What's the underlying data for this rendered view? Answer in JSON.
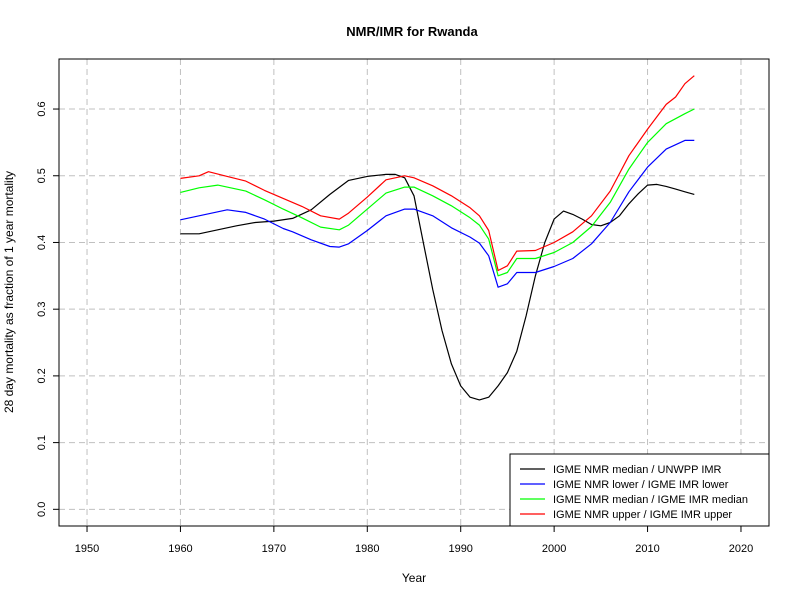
{
  "chart_data": {
    "type": "line",
    "title": "NMR/IMR for Rwanda",
    "xlabel": "Year",
    "ylabel": "28 day mortality as fraction of 1 year mortality",
    "xlim": [
      1947,
      2023
    ],
    "ylim": [
      -0.025,
      0.675
    ],
    "xticks": [
      1950,
      1960,
      1970,
      1980,
      1990,
      2000,
      2010,
      2020
    ],
    "yticks": [
      0.0,
      0.1,
      0.2,
      0.3,
      0.4,
      0.5,
      0.6
    ],
    "grid": true,
    "legend_position": "bottom-right",
    "series": [
      {
        "name": "IGME NMR median / UNWPP IMR",
        "color": "#000000",
        "points": [
          [
            1960,
            0.413
          ],
          [
            1962,
            0.413
          ],
          [
            1964,
            0.419
          ],
          [
            1966,
            0.425
          ],
          [
            1968,
            0.43
          ],
          [
            1970,
            0.432
          ],
          [
            1972,
            0.436
          ],
          [
            1974,
            0.449
          ],
          [
            1976,
            0.472
          ],
          [
            1978,
            0.493
          ],
          [
            1980,
            0.499
          ],
          [
            1982,
            0.502
          ],
          [
            1983,
            0.502
          ],
          [
            1984,
            0.497
          ],
          [
            1985,
            0.47
          ],
          [
            1986,
            0.4
          ],
          [
            1987,
            0.33
          ],
          [
            1988,
            0.268
          ],
          [
            1989,
            0.218
          ],
          [
            1990,
            0.185
          ],
          [
            1991,
            0.168
          ],
          [
            1992,
            0.164
          ],
          [
            1993,
            0.168
          ],
          [
            1994,
            0.185
          ],
          [
            1995,
            0.205
          ],
          [
            1996,
            0.237
          ],
          [
            1997,
            0.29
          ],
          [
            1998,
            0.35
          ],
          [
            1999,
            0.4
          ],
          [
            2000,
            0.435
          ],
          [
            2001,
            0.447
          ],
          [
            2002,
            0.442
          ],
          [
            2003,
            0.435
          ],
          [
            2004,
            0.427
          ],
          [
            2005,
            0.425
          ],
          [
            2006,
            0.43
          ],
          [
            2007,
            0.44
          ],
          [
            2008,
            0.458
          ],
          [
            2009,
            0.473
          ],
          [
            2010,
            0.486
          ],
          [
            2011,
            0.487
          ],
          [
            2012,
            0.484
          ],
          [
            2013,
            0.48
          ],
          [
            2014,
            0.476
          ],
          [
            2015,
            0.472
          ]
        ]
      },
      {
        "name": "IGME NMR lower / IGME IMR lower",
        "color": "#0000ff",
        "points": [
          [
            1960,
            0.434
          ],
          [
            1962,
            0.44
          ],
          [
            1964,
            0.446
          ],
          [
            1965,
            0.449
          ],
          [
            1967,
            0.445
          ],
          [
            1969,
            0.435
          ],
          [
            1971,
            0.421
          ],
          [
            1972,
            0.416
          ],
          [
            1974,
            0.404
          ],
          [
            1976,
            0.394
          ],
          [
            1977,
            0.393
          ],
          [
            1978,
            0.398
          ],
          [
            1980,
            0.418
          ],
          [
            1982,
            0.44
          ],
          [
            1984,
            0.45
          ],
          [
            1985,
            0.45
          ],
          [
            1987,
            0.44
          ],
          [
            1989,
            0.422
          ],
          [
            1991,
            0.408
          ],
          [
            1992,
            0.399
          ],
          [
            1993,
            0.38
          ],
          [
            1994,
            0.333
          ],
          [
            1995,
            0.338
          ],
          [
            1996,
            0.355
          ],
          [
            1998,
            0.355
          ],
          [
            2000,
            0.364
          ],
          [
            2002,
            0.376
          ],
          [
            2004,
            0.398
          ],
          [
            2006,
            0.43
          ],
          [
            2008,
            0.476
          ],
          [
            2010,
            0.513
          ],
          [
            2012,
            0.54
          ],
          [
            2014,
            0.553
          ],
          [
            2015,
            0.553
          ]
        ]
      },
      {
        "name": "IGME NMR median / IGME IMR median",
        "color": "#00ff00",
        "points": [
          [
            1960,
            0.475
          ],
          [
            1962,
            0.482
          ],
          [
            1964,
            0.486
          ],
          [
            1967,
            0.477
          ],
          [
            1969,
            0.464
          ],
          [
            1971,
            0.45
          ],
          [
            1973,
            0.437
          ],
          [
            1975,
            0.423
          ],
          [
            1977,
            0.419
          ],
          [
            1978,
            0.426
          ],
          [
            1980,
            0.45
          ],
          [
            1982,
            0.474
          ],
          [
            1984,
            0.483
          ],
          [
            1985,
            0.483
          ],
          [
            1987,
            0.47
          ],
          [
            1989,
            0.455
          ],
          [
            1991,
            0.437
          ],
          [
            1992,
            0.426
          ],
          [
            1993,
            0.405
          ],
          [
            1994,
            0.35
          ],
          [
            1995,
            0.355
          ],
          [
            1996,
            0.376
          ],
          [
            1998,
            0.376
          ],
          [
            2000,
            0.385
          ],
          [
            2002,
            0.4
          ],
          [
            2004,
            0.424
          ],
          [
            2006,
            0.46
          ],
          [
            2008,
            0.51
          ],
          [
            2010,
            0.55
          ],
          [
            2012,
            0.578
          ],
          [
            2014,
            0.593
          ],
          [
            2015,
            0.6
          ]
        ]
      },
      {
        "name": "IGME NMR upper / IGME IMR upper",
        "color": "#ff0000",
        "points": [
          [
            1960,
            0.496
          ],
          [
            1962,
            0.5
          ],
          [
            1963,
            0.506
          ],
          [
            1965,
            0.499
          ],
          [
            1967,
            0.492
          ],
          [
            1969,
            0.478
          ],
          [
            1971,
            0.466
          ],
          [
            1973,
            0.454
          ],
          [
            1975,
            0.44
          ],
          [
            1977,
            0.435
          ],
          [
            1978,
            0.444
          ],
          [
            1980,
            0.468
          ],
          [
            1982,
            0.494
          ],
          [
            1984,
            0.5
          ],
          [
            1985,
            0.497
          ],
          [
            1987,
            0.485
          ],
          [
            1989,
            0.47
          ],
          [
            1991,
            0.452
          ],
          [
            1992,
            0.44
          ],
          [
            1993,
            0.418
          ],
          [
            1994,
            0.358
          ],
          [
            1995,
            0.365
          ],
          [
            1996,
            0.387
          ],
          [
            1998,
            0.388
          ],
          [
            2000,
            0.4
          ],
          [
            2002,
            0.416
          ],
          [
            2004,
            0.44
          ],
          [
            2006,
            0.477
          ],
          [
            2008,
            0.53
          ],
          [
            2010,
            0.57
          ],
          [
            2012,
            0.607
          ],
          [
            2013,
            0.618
          ],
          [
            2014,
            0.638
          ],
          [
            2015,
            0.65
          ]
        ]
      }
    ]
  }
}
